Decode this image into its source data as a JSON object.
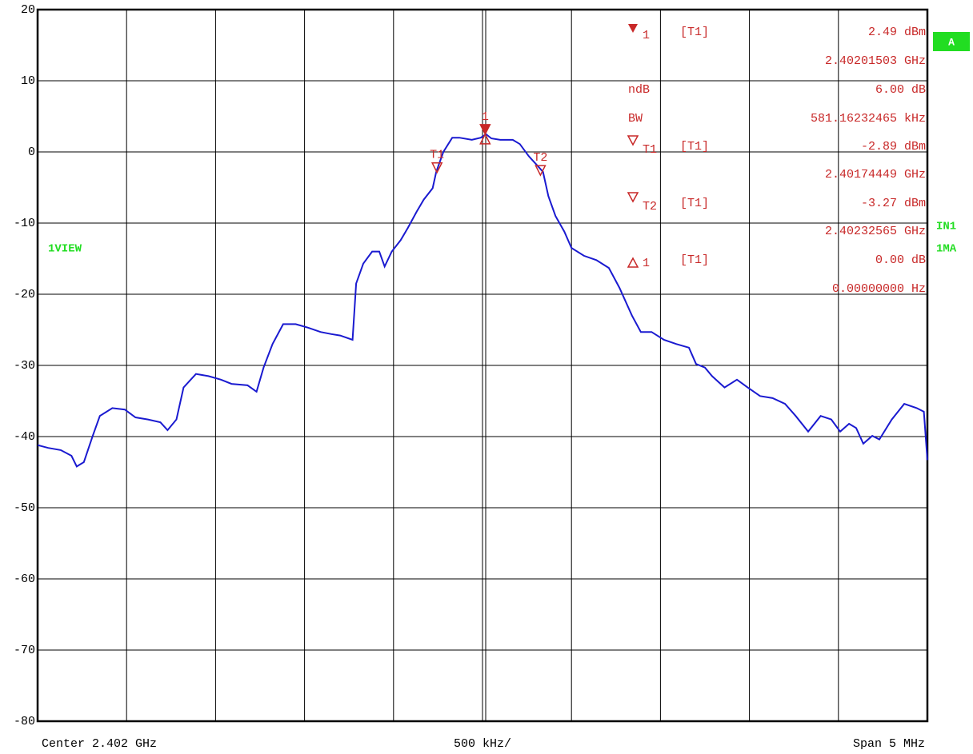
{
  "chart_data": {
    "type": "line",
    "ylim": [
      -80,
      20
    ],
    "yticks": [
      20,
      10,
      0,
      -10,
      -20,
      -30,
      -40,
      -50,
      -60,
      -70,
      -80
    ],
    "xlim": [
      2.3995,
      2.4045
    ],
    "grid": true,
    "color": "#1a1ad0",
    "x": [
      2.3995,
      2.39956,
      2.39963,
      2.39969,
      2.39972,
      2.39976,
      2.39981,
      2.39985,
      2.39992,
      2.39999,
      2.40005,
      2.40012,
      2.40019,
      2.40023,
      2.40028,
      2.40032,
      2.40039,
      2.40046,
      2.40053,
      2.40059,
      2.40068,
      2.40073,
      2.40077,
      2.40082,
      2.40088,
      2.40095,
      2.40102,
      2.40109,
      2.40115,
      2.4012,
      2.40127,
      2.40129,
      2.40133,
      2.40138,
      2.40142,
      2.40145,
      2.40149,
      2.40154,
      2.40158,
      2.40163,
      2.40167,
      2.40172,
      2.40174,
      2.40178,
      2.40183,
      2.40187,
      2.40194,
      2.40199,
      2.40202,
      2.40205,
      2.4021,
      2.40217,
      2.40221,
      2.40226,
      2.4023,
      2.40234,
      2.40237,
      2.40241,
      2.40246,
      2.4025,
      2.40257,
      2.40264,
      2.40271,
      2.40277,
      2.40284,
      2.40289,
      2.40295,
      2.40302,
      2.40309,
      2.40316,
      2.4032,
      2.40325,
      2.40329,
      2.40336,
      2.40343,
      2.40349,
      2.40356,
      2.40363,
      2.4037,
      2.40376,
      2.40383,
      2.4039,
      2.40396,
      2.40401,
      2.40406,
      2.4041,
      2.40414,
      2.40419,
      2.40423,
      2.4043,
      2.40437,
      2.40444,
      2.40448,
      2.4045
    ],
    "values": [
      -41.2,
      -41.6,
      -41.9,
      -42.7,
      -44.2,
      -43.6,
      -39.9,
      -37.1,
      -36,
      -36.2,
      -37.3,
      -37.6,
      -38,
      -39.1,
      -37.6,
      -33.1,
      -31.2,
      -31.5,
      -32,
      -32.6,
      -32.8,
      -33.7,
      -30.3,
      -27,
      -24.2,
      -24.2,
      -24.7,
      -25.3,
      -25.6,
      -25.8,
      -26.4,
      -18.5,
      -15.7,
      -14,
      -14,
      -16.1,
      -14,
      -12.4,
      -10.7,
      -8.4,
      -6.7,
      -5.1,
      -2.8,
      0,
      2,
      2,
      1.7,
      2,
      2.5,
      1.9,
      1.7,
      1.7,
      1.1,
      -0.6,
      -1.7,
      -2.8,
      -6.2,
      -9,
      -11.2,
      -13.5,
      -14.6,
      -15.2,
      -16.3,
      -19.1,
      -23,
      -25.3,
      -25.3,
      -26.4,
      -27,
      -27.5,
      -29.8,
      -30.3,
      -31.5,
      -33.1,
      -32,
      -33.1,
      -34.3,
      -34.6,
      -35.4,
      -37.1,
      -39.3,
      -37.1,
      -37.6,
      -39.3,
      -38.2,
      -38.8,
      -41,
      -39.9,
      -40.4,
      -37.6,
      -35.4,
      -36,
      -36.5,
      -43.3
    ],
    "markers": [
      {
        "name": "1",
        "x": 2.40201503,
        "y": 2.49
      },
      {
        "name": "T1",
        "x": 2.40174449,
        "y": -2.89
      },
      {
        "name": "T2",
        "x": 2.40232565,
        "y": -3.27
      }
    ],
    "marker_table": [
      {
        "name": "1",
        "detector": "[T1]",
        "value": "2.49 dBm"
      },
      {
        "value": "2.40201503 GHz"
      },
      {
        "name": "ndB",
        "value": "6.00 dB"
      },
      {
        "name": "BW",
        "value": "581.16232465 kHz"
      },
      {
        "name": "T1",
        "detector": "[T1]",
        "value": "-2.89 dBm"
      },
      {
        "value": "2.40174449 GHz"
      },
      {
        "name": "T2",
        "detector": "[T1]",
        "value": "-3.27 dBm"
      },
      {
        "value": "2.40232565 GHz"
      },
      {
        "name": "1",
        "detector": "[T1]",
        "value": "0.00 dB"
      },
      {
        "value": "0.00000000 Hz"
      }
    ],
    "side_labels": {
      "trace": "A",
      "view": "1VIEW",
      "input": "IN1",
      "mode": "1MA"
    },
    "footer": {
      "center": "Center 2.402 GHz",
      "per_div": "500 kHz/",
      "span": "Span 5 MHz"
    }
  }
}
